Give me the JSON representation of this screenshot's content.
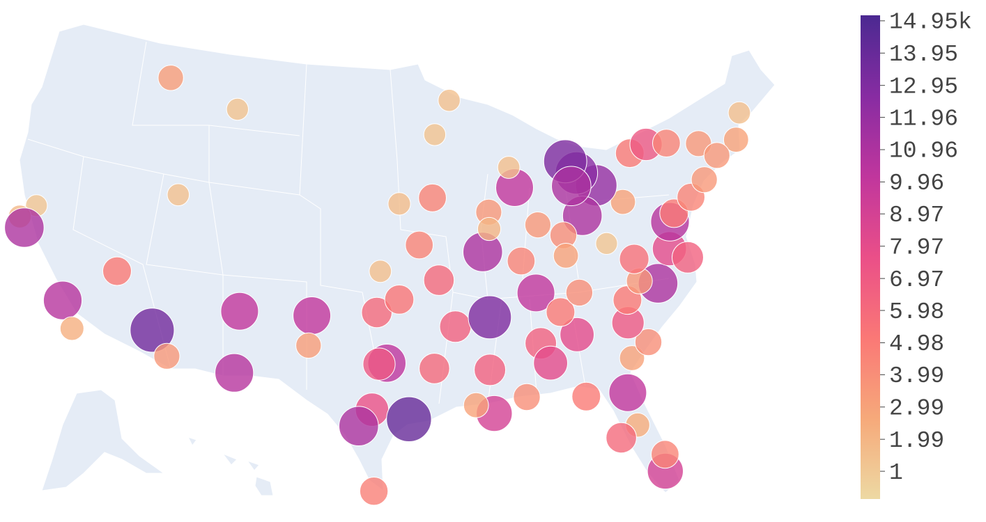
{
  "chart_data": {
    "type": "scattergeo",
    "scope": "usa",
    "lon": [
      -114.0,
      -108.5,
      -92.1,
      -93.3,
      -111.9,
      -121.5,
      -122.4,
      -121.9,
      -118.2,
      -117.2,
      -115.1,
      -112.1,
      -110.9,
      -106.6,
      -106.5,
      -101.8,
      -101.9,
      -97.5,
      -96.0,
      -97.3,
      -94.6,
      -96.0,
      -93.6,
      -96.8,
      -97.3,
      -97.7,
      -98.5,
      -95.4,
      -97.5,
      -93.75,
      -92.3,
      -90.0,
      -86.8,
      -90.2,
      -93.3,
      -90.2,
      -90.1,
      -91.2,
      -88.0,
      -86.8,
      -86.3,
      -84.4,
      -85.3,
      -83.9,
      -81.6,
      -84.3,
      -81.7,
      -81.4,
      -82.5,
      -80.2,
      -80.05,
      -81.1,
      -79.9,
      -81.0,
      -80.8,
      -78.6,
      -79.8,
      -77.4,
      -76.3,
      -77.0,
      -76.6,
      -75.2,
      -74.0,
      -80.0,
      -81.7,
      -83.0,
      -84.5,
      -86.2,
      -87.6,
      -87.9,
      -83.0,
      -83.7,
      -83.5,
      -78.9,
      -77.6,
      -76.1,
      -73.8,
      -71.06,
      -70.3,
      -72.7,
      -89.6,
      -89.65,
      -87.6,
      -84.5,
      -79.9
    ],
    "lat": [
      46.9,
      45.8,
      46.8,
      44.98,
      40.8,
      38.6,
      37.8,
      37.3,
      34.05,
      32.7,
      36.2,
      33.45,
      32.2,
      35.1,
      31.8,
      35.2,
      33.6,
      35.5,
      36.2,
      37.7,
      39.1,
      41.3,
      41.6,
      32.8,
      32.75,
      30.3,
      29.4,
      29.8,
      25.9,
      32.5,
      34.7,
      35.1,
      36.2,
      38.6,
      37.2,
      32.3,
      29.95,
      30.45,
      30.7,
      33.5,
      32.4,
      33.75,
      35.05,
      35.96,
      38.35,
      30.4,
      30.3,
      28.5,
      27.95,
      25.8,
      26.7,
      32.1,
      32.8,
      34.0,
      35.2,
      35.8,
      36.1,
      37.5,
      36.85,
      38.9,
      39.3,
      39.95,
      40.7,
      40.4,
      41.5,
      40.0,
      39.1,
      39.8,
      41.9,
      43.0,
      42.3,
      43.0,
      41.65,
      42.9,
      43.2,
      43.05,
      42.65,
      42.36,
      43.7,
      41.8,
      40.7,
      39.8,
      37.97,
      38.0,
      37.3
    ],
    "values": [
      3.2,
      1.3,
      1.4,
      1.3,
      1.4,
      1.2,
      1.8,
      11,
      10.5,
      2.3,
      5,
      13.5,
      3.5,
      10,
      10.5,
      10,
      3.2,
      6,
      5.3,
      1.5,
      4.5,
      1.6,
      4.5,
      10.2,
      7,
      7.5,
      11,
      14,
      4.8,
      6,
      6.5,
      13,
      10,
      11,
      6,
      6.5,
      9,
      3,
      4,
      6.5,
      8,
      8,
      5,
      4,
      1.2,
      5,
      10,
      2.5,
      6,
      9,
      4.5,
      3,
      4,
      7,
      5,
      11,
      3.5,
      8,
      6.5,
      10.5,
      5,
      4.5,
      3.5,
      3,
      12,
      11,
      4,
      3.5,
      10,
      1.5,
      12.5,
      13,
      11,
      5,
      7,
      4.5,
      3.5,
      3,
      1.5,
      3.5,
      3.5,
      2,
      4.5,
      3,
      5.5
    ],
    "colorscale": [
      "#edd9a3",
      "#f6a97a",
      "#fa7876",
      "#ea4f88",
      "#c0369d",
      "#872ca2",
      "#4b2991"
    ],
    "clim": [
      0.14,
      15.12
    ],
    "cticks": [
      1,
      1.99,
      2.99,
      3.99,
      4.98,
      5.98,
      6.97,
      7.97,
      8.97,
      9.96,
      10.96,
      11.96,
      12.95,
      13.95,
      {
        "value": 14.95,
        "label": "14.95k"
      }
    ]
  }
}
